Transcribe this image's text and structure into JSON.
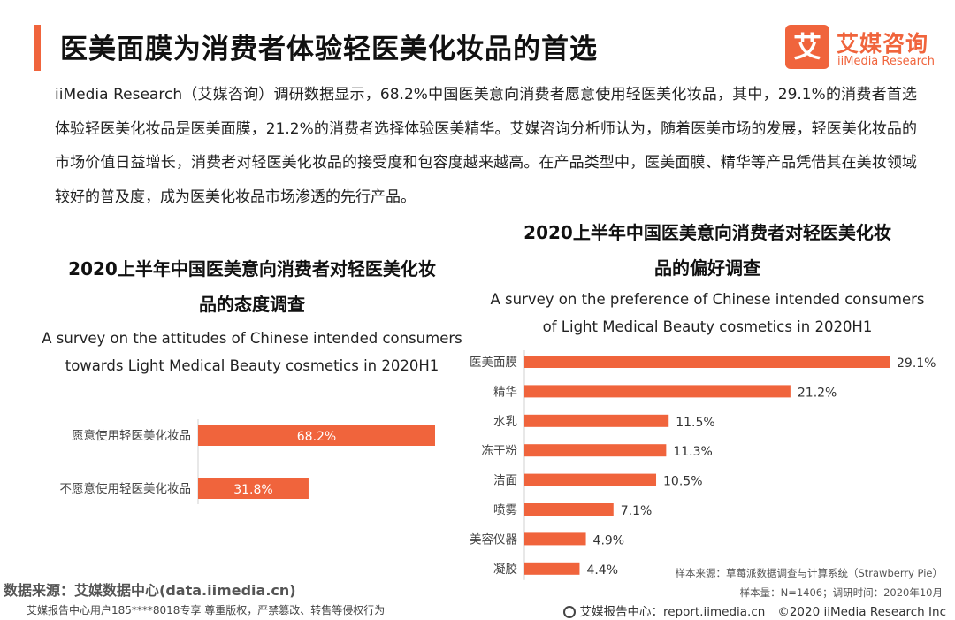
{
  "page": {
    "title": "医美面膜为消费者体验轻医美化妆品的首选",
    "intro": "iiMedia Research（艾媒咨询）调研数据显示，68.2%中国医美意向消费者愿意使用轻医美化妆品，其中，29.1%的消费者首选体验轻医美化妆品是医美面膜，21.2%的消费者选择体验医美精华。艾媒咨询分析师认为，随着医美市场的发展，轻医美化妆品的市场价值日益增长，消费者对轻医美化妆品的接受度和包容度越来越高。在产品类型中，医美面膜、精华等产品凭借其在美妆领域较好的普及度，成为医美化妆品市场渗透的先行产品。"
  },
  "logo": {
    "glyph": "艾",
    "cn": "艾媒咨询",
    "en": "iiMedia Research"
  },
  "footer": {
    "source_left": "数据来源：艾媒数据中心(data.iimedia.cn)",
    "copyright_left": "艾媒报告中心用户185****8018专享 尊重版权，严禁篡改、转售等侵权行为",
    "source_right": "样本来源：草莓派数据调查与计算系统（Strawberry Pie）",
    "sample_right": "样本量：N=1406；调研时间：2020年10月",
    "report_site": "艾媒报告中心：report.iimedia.cn",
    "copyright_right": "©2020  iiMedia Research  Inc"
  },
  "colors": {
    "accent": "#f0643c",
    "bar": "#f0643c",
    "label": "#444444"
  },
  "chart_data": [
    {
      "type": "bar",
      "orientation": "horizontal",
      "title_line1": "2020上半年中国医美意向消费者对轻医美化妆",
      "title_line2": "品的态度调查",
      "subtitle_line1": "A survey on the attitudes of Chinese intended consumers",
      "subtitle_line2": "towards Light Medical Beauty cosmetics in 2020H1",
      "categories": [
        "愿意使用轻医美化妆品",
        "不愿意使用轻医美化妆品"
      ],
      "values": [
        68.2,
        31.8
      ],
      "value_labels": [
        "68.2%",
        "31.8%"
      ],
      "xlim": [
        0,
        68.2
      ],
      "grid": false,
      "legend": "none"
    },
    {
      "type": "bar",
      "orientation": "horizontal",
      "title_line1": "2020上半年中国医美意向消费者对轻医美化妆",
      "title_line2": "品的偏好调查",
      "subtitle_line1": "A survey on the preference of Chinese intended consumers",
      "subtitle_line2": "of Light Medical Beauty cosmetics in 2020H1",
      "categories": [
        "医美面膜",
        "精华",
        "水乳",
        "冻干粉",
        "洁面",
        "喷雾",
        "美容仪器",
        "凝胶"
      ],
      "values": [
        29.1,
        21.2,
        11.5,
        11.3,
        10.5,
        7.1,
        4.9,
        4.4
      ],
      "value_labels": [
        "29.1%",
        "21.2%",
        "11.5%",
        "11.3%",
        "10.5%",
        "7.1%",
        "4.9%",
        "4.4%"
      ],
      "xlim": [
        0,
        29.1
      ],
      "grid": false,
      "legend": "none"
    }
  ]
}
